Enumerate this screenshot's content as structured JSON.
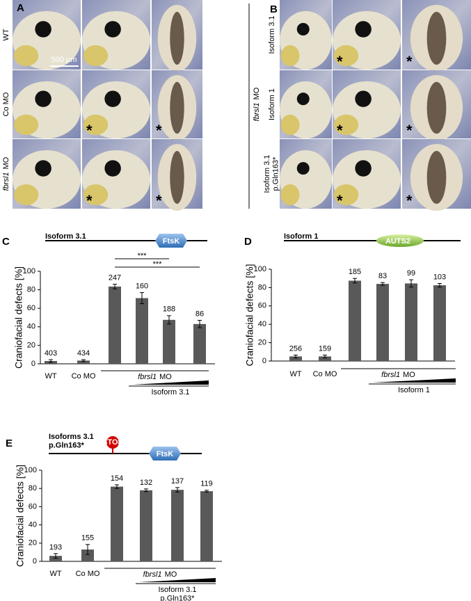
{
  "figure": {
    "panel_a": {
      "label": "A",
      "rows": [
        "WT",
        "Co MO",
        [
          "fbrsl1",
          "MO"
        ]
      ],
      "scale_bar": "500 µm"
    },
    "panel_b": {
      "label": "B",
      "group_label": [
        "fbrsl1",
        "MO"
      ],
      "rows": [
        "Isoform 3.1",
        "Isoform 1",
        [
          "Isoform 3.1",
          "p.Gln163*"
        ]
      ]
    },
    "asterisk": "*"
  },
  "chart_data": [
    {
      "type": "bar",
      "panel": "C",
      "construct": [
        "Isoform 3.1"
      ],
      "domain": "FtsK",
      "y_label": "Craniofacial defects [%]",
      "categories": [
        "WT",
        "Co MO",
        null,
        null,
        null,
        null
      ],
      "values": [
        3,
        3.5,
        83.5,
        71,
        47.5,
        43
      ],
      "errors": [
        1.5,
        1,
        2.5,
        6,
        4.5,
        4
      ],
      "n": [
        403,
        434,
        247,
        160,
        188,
        86
      ],
      "color": "#595959",
      "group_label": [
        "fbrsl1",
        "MO"
      ],
      "treatment": [
        "Isoform 3.1"
      ],
      "significance": [
        {
          "from": 2,
          "to": 4,
          "label": "***"
        },
        {
          "from": 2,
          "to": 5,
          "label": "***"
        }
      ],
      "ylim": [
        0,
        100
      ],
      "yticks": [
        0,
        20,
        40,
        60,
        80,
        100
      ]
    },
    {
      "type": "bar",
      "panel": "D",
      "construct": [
        "Isoform 1"
      ],
      "domain": "AUTS2",
      "y_label": "Craniofacial defects [%]",
      "categories": [
        "WT",
        "Co MO",
        null,
        null,
        null,
        null
      ],
      "values": [
        5,
        5,
        87.5,
        84,
        84.5,
        82.5
      ],
      "errors": [
        1.5,
        1.5,
        2.5,
        1.5,
        4,
        2
      ],
      "n": [
        256,
        159,
        185,
        83,
        99,
        103
      ],
      "color": "#595959",
      "group_label": [
        "fbrsl1",
        "MO"
      ],
      "treatment": [
        "Isoform 1"
      ],
      "ylim": [
        0,
        100
      ],
      "yticks": [
        0,
        20,
        40,
        60,
        80,
        100
      ]
    },
    {
      "type": "bar",
      "panel": "E",
      "construct": [
        "Isoforms 3.1",
        "p.Gln163*"
      ],
      "domain": "FtsK",
      "stop": "STOP",
      "y_label": "Craniofacial defects [%]",
      "categories": [
        "WT",
        "Co MO",
        null,
        null,
        null,
        null
      ],
      "values": [
        6,
        13,
        82,
        78,
        78.5,
        77
      ],
      "errors": [
        2.5,
        5.5,
        2,
        1.5,
        2.5,
        1
      ],
      "n": [
        193,
        155,
        154,
        132,
        137,
        119
      ],
      "color": "#595959",
      "group_label": [
        "fbrsl1",
        "MO"
      ],
      "treatment": [
        "Isoform 3.1",
        "p.Gln163*"
      ],
      "ylim": [
        0,
        100
      ],
      "yticks": [
        0,
        20,
        40,
        60,
        80,
        100
      ]
    }
  ]
}
